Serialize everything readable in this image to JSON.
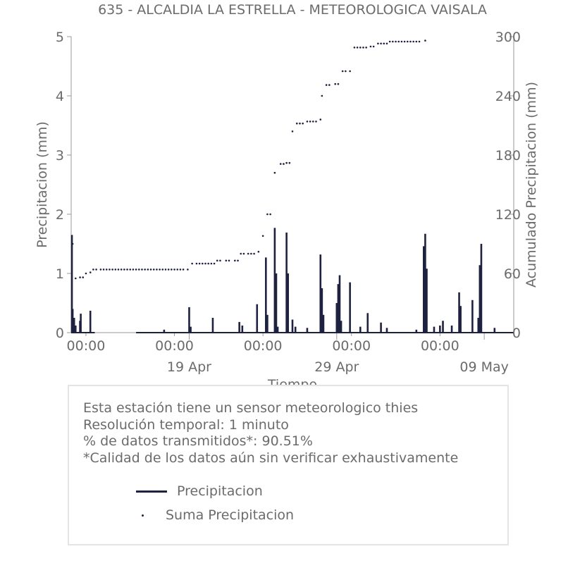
{
  "chart_data": {
    "type": "line",
    "title": "635 - ALCALDIA LA ESTRELLA - METEOROLOGICA VAISALA",
    "xlabel": "Tiempo",
    "ylabel_left": "Precipitacion (mm)",
    "ylabel_right": "Acumulado Precipitacion (mm)",
    "ylim_left": [
      0,
      5
    ],
    "ylim_right": [
      0,
      300
    ],
    "yticks_left": [
      "0",
      "1",
      "2",
      "3",
      "4",
      "5"
    ],
    "yticks_right": [
      "0",
      "60",
      "120",
      "180",
      "240",
      "300"
    ],
    "xlim_days": [
      0,
      30
    ],
    "xticks_hour": [
      {
        "day": 1.0,
        "label": "00:00"
      },
      {
        "day": 7.0,
        "label": "00:00"
      },
      {
        "day": 13.0,
        "label": "00:00"
      },
      {
        "day": 19.0,
        "label": "00:00"
      },
      {
        "day": 25.0,
        "label": "00:00"
      }
    ],
    "xticks_date": [
      {
        "day": 8.0,
        "label": "19 Apr"
      },
      {
        "day": 18.0,
        "label": "29 Apr"
      },
      {
        "day": 28.0,
        "label": "09 May"
      }
    ],
    "grid": false,
    "series": [
      {
        "name": "Precipitacion",
        "style": "line",
        "color": "#1f2140",
        "spikes": [
          [
            0.05,
            1.65
          ],
          [
            0.1,
            0.4
          ],
          [
            0.2,
            0.25
          ],
          [
            0.3,
            0.12
          ],
          [
            0.6,
            0.2
          ],
          [
            0.65,
            0.32
          ],
          [
            1.3,
            0.37
          ],
          [
            6.3,
            0.05
          ],
          [
            8.0,
            0.43
          ],
          [
            8.1,
            0.1
          ],
          [
            9.6,
            0.25
          ],
          [
            11.4,
            0.18
          ],
          [
            11.6,
            0.12
          ],
          [
            12.6,
            0.48
          ],
          [
            13.2,
            1.27
          ],
          [
            13.3,
            0.3
          ],
          [
            13.8,
            1.77
          ],
          [
            13.9,
            1.0
          ],
          [
            14.0,
            0.1
          ],
          [
            14.6,
            1.69
          ],
          [
            14.7,
            1.0
          ],
          [
            15.0,
            0.22
          ],
          [
            15.2,
            0.1
          ],
          [
            16.0,
            0.08
          ],
          [
            16.9,
            1.32
          ],
          [
            17.0,
            0.75
          ],
          [
            17.1,
            0.3
          ],
          [
            18.0,
            0.5
          ],
          [
            18.1,
            0.82
          ],
          [
            18.2,
            0.97
          ],
          [
            18.3,
            0.2
          ],
          [
            18.9,
            0.85
          ],
          [
            19.6,
            0.1
          ],
          [
            20.1,
            0.33
          ],
          [
            21.0,
            0.17
          ],
          [
            21.4,
            0.08
          ],
          [
            23.4,
            0.05
          ],
          [
            23.9,
            1.46
          ],
          [
            24.0,
            1.67
          ],
          [
            24.1,
            1.08
          ],
          [
            24.6,
            0.1
          ],
          [
            25.0,
            0.12
          ],
          [
            25.2,
            0.2
          ],
          [
            25.8,
            0.12
          ],
          [
            26.3,
            0.68
          ],
          [
            26.4,
            0.45
          ],
          [
            27.2,
            0.55
          ],
          [
            27.6,
            0.25
          ],
          [
            27.7,
            1.14
          ],
          [
            27.8,
            1.5
          ],
          [
            28.7,
            0.08
          ]
        ],
        "gap_days": [
          1.6,
          4.4
        ]
      },
      {
        "name": "Suma Precipitacion",
        "style": "dots",
        "color": "#1f2140",
        "points": [
          [
            0.1,
            90
          ],
          [
            0.3,
            55
          ],
          [
            0.6,
            56
          ],
          [
            1.0,
            60
          ],
          [
            1.3,
            61
          ],
          [
            1.5,
            64
          ],
          [
            2,
            64
          ],
          [
            3,
            64
          ],
          [
            4,
            64
          ],
          [
            5,
            64
          ],
          [
            6,
            64
          ],
          [
            7,
            64
          ],
          [
            7.9,
            64
          ],
          [
            8.2,
            70
          ],
          [
            8.5,
            70
          ],
          [
            9.5,
            70
          ],
          [
            9.9,
            73
          ],
          [
            10.5,
            73
          ],
          [
            11.1,
            73
          ],
          [
            11.5,
            80
          ],
          [
            12.0,
            80
          ],
          [
            12.7,
            82
          ],
          [
            13.0,
            98
          ],
          [
            13.3,
            120
          ],
          [
            13.8,
            162
          ],
          [
            14.2,
            171
          ],
          [
            14.6,
            172
          ],
          [
            15.0,
            204
          ],
          [
            15.3,
            212
          ],
          [
            16.0,
            214
          ],
          [
            16.9,
            216
          ],
          [
            17.0,
            240
          ],
          [
            17.3,
            251
          ],
          [
            17.9,
            252
          ],
          [
            18.4,
            265
          ],
          [
            18.9,
            265
          ],
          [
            19.2,
            289
          ],
          [
            20.3,
            290
          ],
          [
            20.8,
            293
          ],
          [
            21.6,
            295
          ],
          [
            24.0,
            296
          ]
        ]
      }
    ]
  },
  "info": {
    "lines": [
      "Esta estación tiene un sensor meteorologico thies",
      "Resolución temporal: 1 minuto",
      "% de datos transmitidos*: 90.51%",
      "*Calidad de los datos aún sin verificar exhaustivamente"
    ]
  },
  "legend": {
    "items": [
      "Precipitacion",
      "Suma Precipitacion"
    ]
  }
}
